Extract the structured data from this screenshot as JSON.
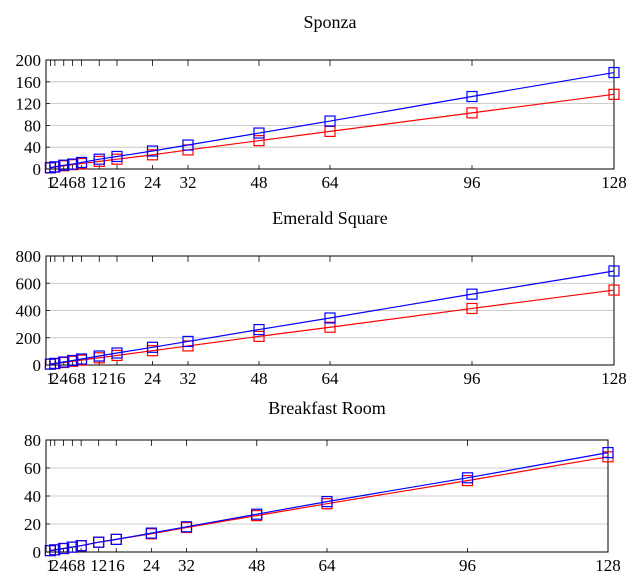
{
  "chart_data": [
    {
      "type": "line",
      "title": "Sponza",
      "xlabel": "",
      "ylabel": "",
      "x": [
        1,
        2,
        4,
        6,
        8,
        12,
        16,
        24,
        32,
        48,
        64,
        96,
        128
      ],
      "xticks": [
        1,
        2,
        4,
        6,
        8,
        12,
        16,
        24,
        32,
        48,
        64,
        96,
        128
      ],
      "xlim": [
        0,
        128
      ],
      "yticks": [
        0,
        40,
        80,
        120,
        160,
        200
      ],
      "ylim": [
        0,
        200
      ],
      "grid": true,
      "series": [
        {
          "color": "#0000ff",
          "marker": "square",
          "values": [
            2.5,
            4,
            7,
            9,
            12,
            18,
            23,
            33,
            44,
            66,
            88,
            133,
            177
          ]
        },
        {
          "color": "#ff0000",
          "marker": "square",
          "values": [
            2,
            3.5,
            6,
            8,
            10,
            14,
            18,
            26,
            35,
            52,
            69,
            103,
            137
          ]
        }
      ]
    },
    {
      "type": "line",
      "title": "Emerald Square",
      "xlabel": "",
      "ylabel": "",
      "x": [
        1,
        2,
        4,
        6,
        8,
        12,
        16,
        24,
        32,
        48,
        64,
        96,
        128
      ],
      "xticks": [
        1,
        2,
        4,
        6,
        8,
        12,
        16,
        24,
        32,
        48,
        64,
        96,
        128
      ],
      "xlim": [
        0,
        128
      ],
      "yticks": [
        0,
        200,
        400,
        600,
        800
      ],
      "ylim": [
        0,
        800
      ],
      "grid": true,
      "series": [
        {
          "color": "#0000ff",
          "marker": "square",
          "values": [
            7,
            12,
            22,
            33,
            44,
            66,
            88,
            130,
            173,
            260,
            345,
            520,
            690
          ]
        },
        {
          "color": "#ff0000",
          "marker": "square",
          "values": [
            6,
            10,
            18,
            27,
            36,
            53,
            70,
            105,
            140,
            210,
            277,
            415,
            550
          ]
        }
      ]
    },
    {
      "type": "line",
      "title": "Breakfast Room",
      "xlabel": "",
      "ylabel": "",
      "x": [
        1,
        2,
        4,
        6,
        8,
        12,
        16,
        24,
        32,
        48,
        64,
        96,
        128
      ],
      "xticks": [
        1,
        2,
        4,
        6,
        8,
        12,
        16,
        24,
        32,
        48,
        64,
        96,
        128
      ],
      "xlim": [
        0,
        128
      ],
      "yticks": [
        0,
        20,
        40,
        60,
        80
      ],
      "ylim": [
        0,
        80
      ],
      "grid": true,
      "series": [
        {
          "color": "#0000ff",
          "marker": "square",
          "values": [
            1,
            1.5,
            2.5,
            3.5,
            4.5,
            7,
            9,
            13.5,
            18,
            27,
            36,
            53,
            71
          ]
        },
        {
          "color": "#ff0000",
          "marker": "square",
          "values": [
            1,
            1.5,
            2.5,
            3.5,
            4.5,
            7,
            9,
            13,
            17.5,
            26,
            34.5,
            51,
            68
          ]
        }
      ]
    }
  ]
}
